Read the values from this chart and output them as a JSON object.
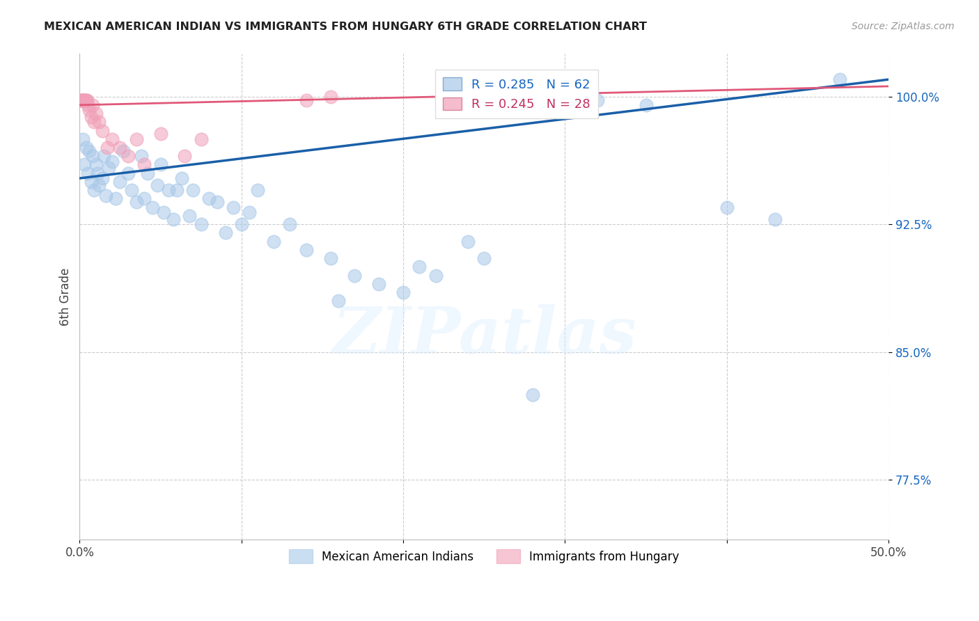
{
  "title": "MEXICAN AMERICAN INDIAN VS IMMIGRANTS FROM HUNGARY 6TH GRADE CORRELATION CHART",
  "source": "Source: ZipAtlas.com",
  "ylabel": "6th Grade",
  "y_ticks": [
    77.5,
    85.0,
    92.5,
    100.0
  ],
  "y_tick_labels": [
    "77.5%",
    "85.0%",
    "92.5%",
    "100.0%"
  ],
  "xlim": [
    0.0,
    50.0
  ],
  "ylim": [
    74.0,
    102.5
  ],
  "legend1_label": "Mexican American Indians",
  "legend2_label": "Immigrants from Hungary",
  "R_blue": 0.285,
  "N_blue": 62,
  "R_pink": 0.245,
  "N_pink": 28,
  "blue_color": "#a8c8e8",
  "pink_color": "#f0a0b8",
  "trendline_blue": "#1a5fa8",
  "trendline_pink": "#e05878",
  "blue_trendline_x": [
    0.0,
    50.0
  ],
  "blue_trendline_y": [
    95.2,
    101.0
  ],
  "pink_trendline_x": [
    0.0,
    50.0
  ],
  "pink_trendline_y": [
    99.5,
    100.6
  ],
  "blue_points_x": [
    0.2,
    0.3,
    0.4,
    0.5,
    0.6,
    0.7,
    0.8,
    0.9,
    1.0,
    1.1,
    1.2,
    1.4,
    1.5,
    1.6,
    1.8,
    2.0,
    2.2,
    2.5,
    2.7,
    3.0,
    3.2,
    3.5,
    3.8,
    4.0,
    4.2,
    4.5,
    4.8,
    5.0,
    5.2,
    5.5,
    5.8,
    6.0,
    6.3,
    6.8,
    7.0,
    7.5,
    8.0,
    8.5,
    9.0,
    9.5,
    10.0,
    10.5,
    11.0,
    12.0,
    13.0,
    14.0,
    15.5,
    17.0,
    18.5,
    20.0,
    21.0,
    22.0,
    24.0,
    25.0,
    30.0,
    32.0,
    35.0,
    40.0,
    43.0,
    47.0,
    28.0,
    16.0
  ],
  "blue_points_y": [
    97.5,
    96.0,
    97.0,
    95.5,
    96.8,
    95.0,
    96.5,
    94.5,
    96.0,
    95.5,
    94.8,
    95.2,
    96.5,
    94.2,
    95.8,
    96.2,
    94.0,
    95.0,
    96.8,
    95.5,
    94.5,
    93.8,
    96.5,
    94.0,
    95.5,
    93.5,
    94.8,
    96.0,
    93.2,
    94.5,
    92.8,
    94.5,
    95.2,
    93.0,
    94.5,
    92.5,
    94.0,
    93.8,
    92.0,
    93.5,
    92.5,
    93.2,
    94.5,
    91.5,
    92.5,
    91.0,
    90.5,
    89.5,
    89.0,
    88.5,
    90.0,
    89.5,
    91.5,
    90.5,
    100.2,
    99.8,
    99.5,
    93.5,
    92.8,
    101.0,
    82.5,
    88.0
  ],
  "pink_points_x": [
    0.05,
    0.1,
    0.15,
    0.2,
    0.25,
    0.3,
    0.35,
    0.4,
    0.45,
    0.5,
    0.6,
    0.7,
    0.8,
    0.9,
    1.0,
    1.2,
    1.4,
    1.7,
    2.0,
    2.5,
    3.0,
    3.5,
    4.0,
    5.0,
    6.5,
    7.5,
    14.0,
    15.5
  ],
  "pink_points_y": [
    99.8,
    99.8,
    99.8,
    99.8,
    99.8,
    99.8,
    99.8,
    99.8,
    99.8,
    99.5,
    99.2,
    98.8,
    99.5,
    98.5,
    99.0,
    98.5,
    98.0,
    97.0,
    97.5,
    97.0,
    96.5,
    97.5,
    96.0,
    97.8,
    96.5,
    97.5,
    99.8,
    100.0
  ]
}
